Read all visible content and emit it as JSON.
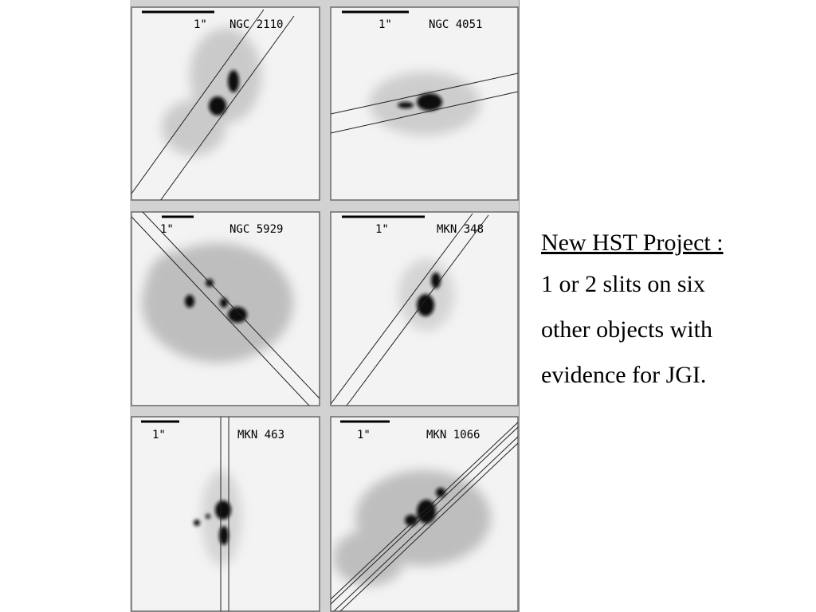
{
  "figure": {
    "panels": [
      {
        "scale_label": "1\"",
        "object_name": "NGC 2110"
      },
      {
        "scale_label": "1\"",
        "object_name": "NGC 4051"
      },
      {
        "scale_label": "1\"",
        "object_name": "NGC 5929"
      },
      {
        "scale_label": "1\"",
        "object_name": "MKN 348"
      },
      {
        "scale_label": "1\"",
        "object_name": "MKN 463"
      },
      {
        "scale_label": "1\"",
        "object_name": "MKN 1066"
      }
    ]
  },
  "text": {
    "title": "New HST Project :",
    "body_lines": [
      "1 or 2 slits on six",
      "other objects with",
      "evidence for JGI."
    ]
  }
}
